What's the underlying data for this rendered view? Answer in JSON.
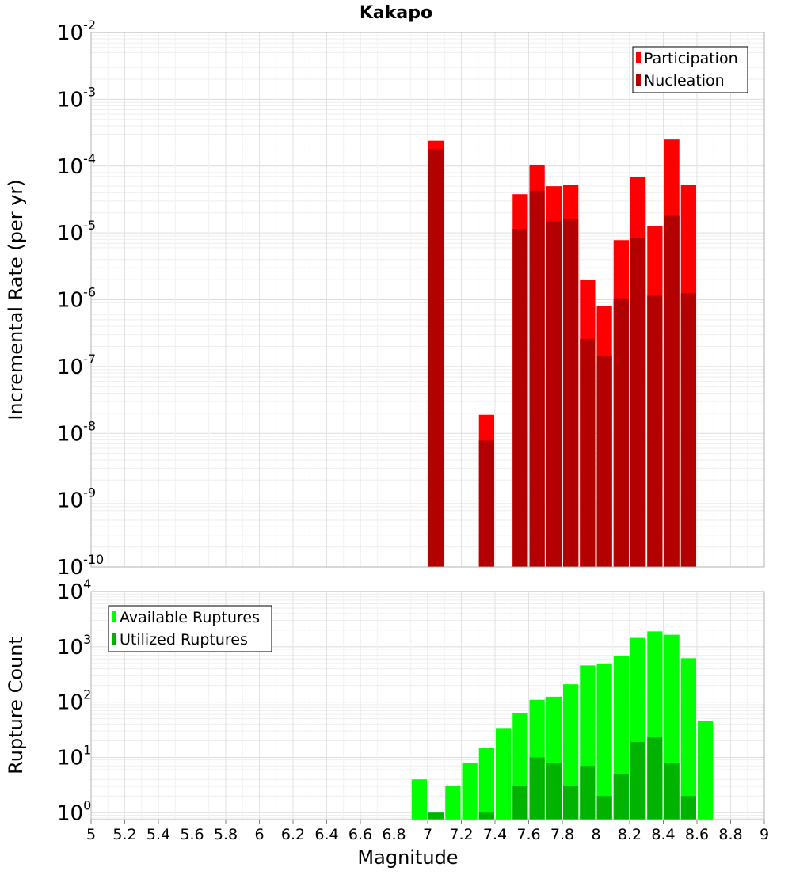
{
  "title": "Kakapo",
  "colors": {
    "participation": "#ff0000",
    "nucleation": "#b30000",
    "available": "#00ff00",
    "utilized": "#00b300"
  },
  "chart_data": [
    {
      "type": "bar",
      "title": "Kakapo",
      "ylabel": "Incremental Rate (per yr)",
      "xlabel": "",
      "yscale": "log",
      "ylim": [
        1e-10,
        0.01
      ],
      "xlim": [
        5,
        9
      ],
      "y_tick_exponents": [
        "-10",
        "-9",
        "-8",
        "-7",
        "-6",
        "-5",
        "-4",
        "-3",
        "-2"
      ],
      "legend": {
        "position": "top-right",
        "entries": [
          "Participation",
          "Nucleation"
        ]
      },
      "x": [
        7.05,
        7.35,
        7.55,
        7.65,
        7.75,
        7.85,
        7.95,
        8.05,
        8.15,
        8.25,
        8.35,
        8.45,
        8.55
      ],
      "series": [
        {
          "name": "Participation",
          "values": [
            0.00024,
            1.9e-08,
            3.8e-05,
            0.000105,
            5e-05,
            5.2e-05,
            2e-06,
            8e-07,
            7.8e-06,
            6.8e-05,
            1.25e-05,
            0.00025,
            5.2e-05
          ]
        },
        {
          "name": "Nucleation",
          "values": [
            0.00018,
            7.8e-09,
            1.15e-05,
            4.3e-05,
            1.5e-05,
            1.6e-05,
            2.6e-07,
            1.45e-07,
            1.05e-06,
            8.3e-06,
            1.15e-06,
            1.8e-05,
            1.25e-06
          ]
        }
      ]
    },
    {
      "type": "bar",
      "title": "",
      "ylabel": "Rupture Count",
      "xlabel": "Magnitude",
      "yscale": "log",
      "ylim": [
        0.75,
        10000
      ],
      "xlim": [
        5,
        9
      ],
      "y_tick_exponents": [
        "0",
        "1",
        "2",
        "3",
        "4"
      ],
      "x_ticks": [
        "5",
        "5.2",
        "5.4",
        "5.6",
        "5.8",
        "6",
        "6.2",
        "6.4",
        "6.6",
        "6.8",
        "7",
        "7.2",
        "7.4",
        "7.6",
        "7.8",
        "8",
        "8.2",
        "8.4",
        "8.6",
        "8.8",
        "9"
      ],
      "legend": {
        "position": "top-left",
        "entries": [
          "Available Ruptures",
          "Utilized Ruptures"
        ]
      },
      "x": [
        6.95,
        7.05,
        7.15,
        7.25,
        7.35,
        7.45,
        7.55,
        7.65,
        7.75,
        7.85,
        7.95,
        8.05,
        8.15,
        8.25,
        8.35,
        8.45,
        8.55,
        8.65
      ],
      "series": [
        {
          "name": "Available Ruptures",
          "values": [
            4,
            1,
            3,
            8,
            15,
            34,
            64,
            110,
            125,
            210,
            460,
            500,
            680,
            1450,
            1900,
            1650,
            620,
            45
          ]
        },
        {
          "name": "Utilized Ruptures",
          "values": [
            0,
            1,
            0,
            0,
            1,
            0,
            3,
            10,
            8,
            3,
            7,
            2,
            5,
            19,
            23,
            8,
            2,
            0
          ]
        }
      ]
    }
  ]
}
